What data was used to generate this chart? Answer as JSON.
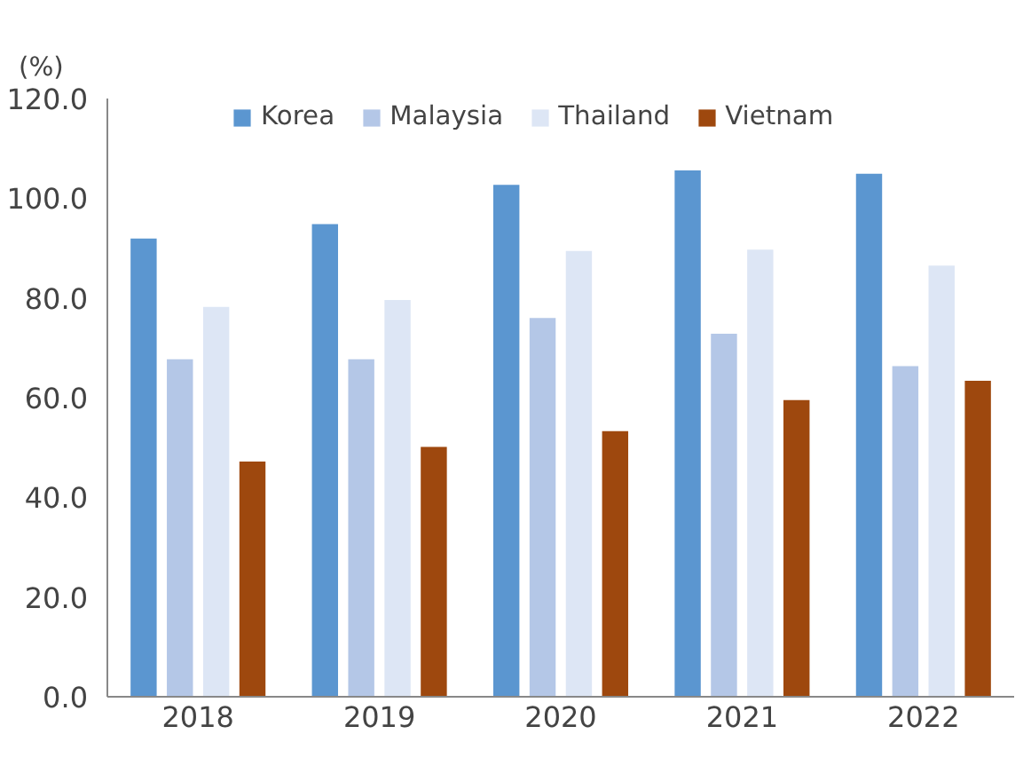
{
  "chart_data": {
    "type": "bar",
    "ylabel": "(%)",
    "categories": [
      "2018",
      "2019",
      "2020",
      "2021",
      "2022"
    ],
    "series": [
      {
        "name": "Korea",
        "color": "#5b96d0",
        "values": [
          91.9,
          94.8,
          102.7,
          105.6,
          104.9
        ]
      },
      {
        "name": "Malaysia",
        "color": "#b4c7e7",
        "values": [
          67.7,
          67.7,
          76.0,
          72.8,
          66.3
        ]
      },
      {
        "name": "Thailand",
        "color": "#dde6f5",
        "values": [
          78.2,
          79.6,
          89.4,
          89.7,
          86.5
        ]
      },
      {
        "name": "Vietnam",
        "color": "#9e480e",
        "values": [
          47.2,
          50.1,
          53.3,
          59.5,
          63.4
        ]
      }
    ],
    "ylim": [
      0,
      120
    ],
    "yticks": [
      {
        "value": 0,
        "label": "0.0"
      },
      {
        "value": 20,
        "label": "20.0"
      },
      {
        "value": 40,
        "label": "40.0"
      },
      {
        "value": 60,
        "label": "60.0"
      },
      {
        "value": 80,
        "label": "80.0"
      },
      {
        "value": 100,
        "label": "100.0"
      },
      {
        "value": 120,
        "label": "120.0"
      }
    ],
    "grid": false,
    "legend": "top"
  }
}
